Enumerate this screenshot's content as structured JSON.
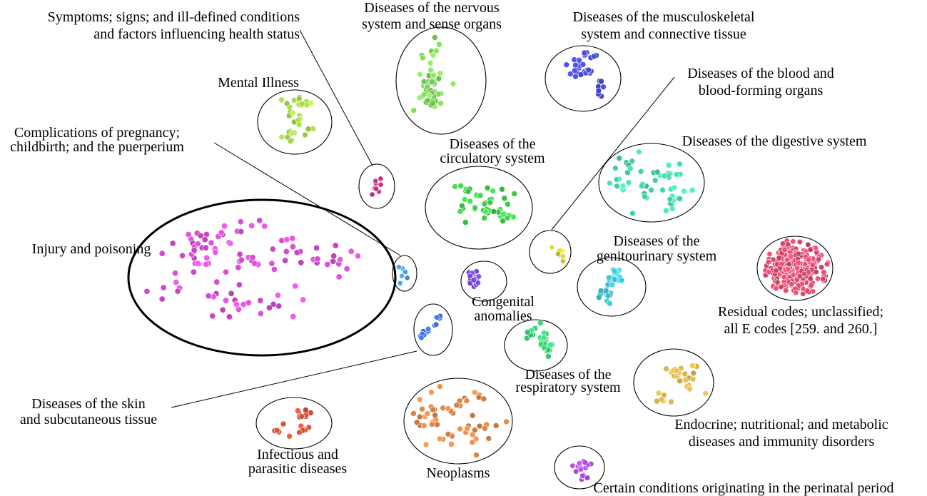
{
  "clusters": [
    {
      "id": "symptoms",
      "label_lines": [
        "Symptoms; signs; and ill-defined conditions",
        "and factors influencing health status"
      ],
      "color": "#d63384",
      "icon": "cluster-dots"
    },
    {
      "id": "nervous",
      "label_lines": [
        "Diseases of the nervous",
        "system and sense organs"
      ],
      "color": "#7ed957",
      "icon": "cluster-dots"
    },
    {
      "id": "musculoskeletal",
      "label_lines": [
        "Diseases of the musculoskeletal",
        "system and connective tissue"
      ],
      "color": "#4b4ed6",
      "icon": "cluster-dots"
    },
    {
      "id": "mental",
      "label_lines": [
        "Mental Illness"
      ],
      "color": "#a8d64a",
      "icon": "cluster-dots"
    },
    {
      "id": "blood",
      "label_lines": [
        "Diseases of the blood and",
        "blood-forming organs"
      ],
      "color": "#d6d63a",
      "icon": "cluster-dots"
    },
    {
      "id": "pregnancy",
      "label_lines": [
        "Complications of pregnancy;",
        "childbirth; and the puerperium"
      ],
      "color": "#4a9ee0",
      "icon": "cluster-dots"
    },
    {
      "id": "circulatory",
      "label_lines": [
        "Diseases of the",
        "circulatory system"
      ],
      "color": "#3ecf4a",
      "icon": "cluster-dots"
    },
    {
      "id": "digestive",
      "label_lines": [
        "Diseases of the digestive system"
      ],
      "color": "#45d6b0",
      "icon": "cluster-dots"
    },
    {
      "id": "injury",
      "label_lines": [
        "Injury and poisoning"
      ],
      "color": "#d94fd6",
      "icon": "cluster-dots"
    },
    {
      "id": "genitourinary",
      "label_lines": [
        "Diseases of the",
        "genitourinary system"
      ],
      "color": "#3ec8d8",
      "icon": "cluster-dots"
    },
    {
      "id": "residual",
      "label_lines": [
        "Residual codes; unclassified;",
        "all E codes [259. and 260.]"
      ],
      "color": "#e04a6e",
      "icon": "cluster-dots"
    },
    {
      "id": "congenital",
      "label_lines": [
        "Congenital",
        "anomalies"
      ],
      "color": "#7a4ad6",
      "icon": "cluster-dots"
    },
    {
      "id": "skin",
      "label_lines": [
        "Diseases of the skin",
        "and subcutaneous tissue"
      ],
      "color": "#3a6ed6",
      "icon": "cluster-dots"
    },
    {
      "id": "respiratory",
      "label_lines": [
        "Diseases of the",
        "respiratory system"
      ],
      "color": "#3ed67a",
      "icon": "cluster-dots"
    },
    {
      "id": "endocrine",
      "label_lines": [
        "Endocrine; nutritional; and metabolic",
        "diseases and immunity disorders"
      ],
      "color": "#d6b24a",
      "icon": "cluster-dots"
    },
    {
      "id": "infectious",
      "label_lines": [
        "Infectious and",
        "parasitic diseases"
      ],
      "color": "#d6543a",
      "icon": "cluster-dots"
    },
    {
      "id": "neoplasms",
      "label_lines": [
        "Neoplasms"
      ],
      "color": "#e0874a",
      "icon": "cluster-dots"
    },
    {
      "id": "perinatal",
      "label_lines": [
        "Certain conditions originating in the perinatal period"
      ],
      "color": "#b04ae0",
      "icon": "cluster-dots"
    }
  ]
}
